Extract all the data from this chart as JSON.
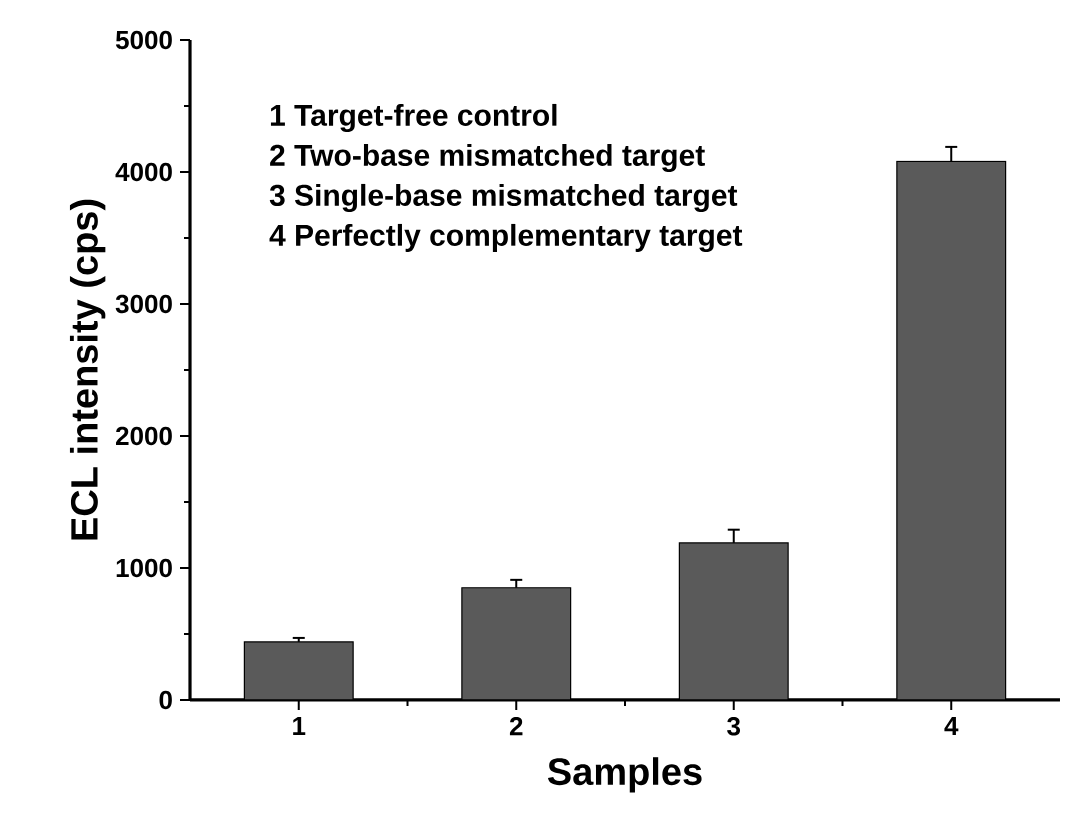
{
  "chart_data": {
    "type": "bar",
    "xlabel": "Samples",
    "ylabel": "ECL intensity (cps)",
    "categories": [
      "1",
      "2",
      "3",
      "4"
    ],
    "values": [
      440,
      850,
      1190,
      4080
    ],
    "errors": [
      30,
      60,
      100,
      110
    ],
    "color": "#5a5a5a",
    "ylim": [
      0,
      5000
    ],
    "yticks": [
      0,
      1000,
      2000,
      3000,
      4000,
      5000
    ],
    "annotations": [
      "1 Target-free control",
      "2 Two-base mismatched target",
      "3 Single-base mismatched target",
      "4 Perfectly complementary target"
    ],
    "grid": false
  }
}
